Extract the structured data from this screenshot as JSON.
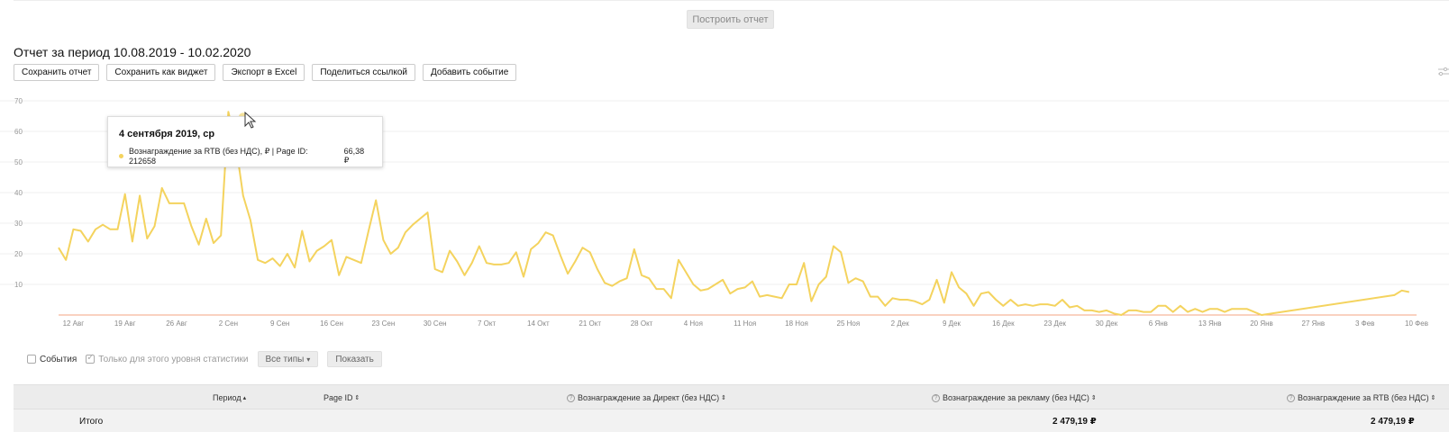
{
  "build_button": "Построить отчет",
  "report_title": "Отчет за период 10.08.2019 - 10.02.2020",
  "toolbar": [
    {
      "label": "Сохранить отчет"
    },
    {
      "label": "Сохранить как виджет"
    },
    {
      "label": "Экспорт в Excel"
    },
    {
      "label": "Поделиться ссылкой"
    },
    {
      "label": "Добавить событие"
    }
  ],
  "tooltip": {
    "date": "4 сентября 2019, ср",
    "series": "Вознаграждение за RTB (без НДС), ₽ | Page ID: 212658",
    "value": "66,38 ₽"
  },
  "filters": {
    "events_label": "События",
    "level_label": "Только для этого уровня статистики",
    "types_label": "Все типы",
    "show_label": "Показать"
  },
  "table": {
    "headers": {
      "period": "Период",
      "page_id": "Page ID",
      "direct": "Вознаграждение за Директ (без НДС)",
      "ads": "Вознаграждение за рекламу (без НДС)",
      "rtb": "Вознаграждение за RTB (без НДС)"
    },
    "total": {
      "label": "Итого",
      "ads": "2 479,19 ₽",
      "rtb": "2 479,19 ₽"
    }
  },
  "colors": {
    "series": "#f4d35e",
    "baseline": "#f4a582"
  },
  "chart_data": {
    "type": "line",
    "ylim": [
      0,
      70
    ],
    "yticks": [
      10,
      20,
      30,
      40,
      50,
      60,
      70
    ],
    "xlim": [
      "2019-08-10",
      "2020-02-10"
    ],
    "xticks": [
      {
        "date": "2019-08-12",
        "label": "12 Авг"
      },
      {
        "date": "2019-08-19",
        "label": "19 Авг"
      },
      {
        "date": "2019-08-26",
        "label": "26 Авг"
      },
      {
        "date": "2019-09-02",
        "label": "2 Сен"
      },
      {
        "date": "2019-09-09",
        "label": "9 Сен"
      },
      {
        "date": "2019-09-16",
        "label": "16 Сен"
      },
      {
        "date": "2019-09-23",
        "label": "23 Сен"
      },
      {
        "date": "2019-09-30",
        "label": "30 Сен"
      },
      {
        "date": "2019-10-07",
        "label": "7 Окт"
      },
      {
        "date": "2019-10-14",
        "label": "14 Окт"
      },
      {
        "date": "2019-10-21",
        "label": "21 Окт"
      },
      {
        "date": "2019-10-28",
        "label": "28 Окт"
      },
      {
        "date": "2019-11-04",
        "label": "4 Ноя"
      },
      {
        "date": "2019-11-11",
        "label": "11 Ноя"
      },
      {
        "date": "2019-11-18",
        "label": "18 Ноя"
      },
      {
        "date": "2019-11-25",
        "label": "25 Ноя"
      },
      {
        "date": "2019-12-02",
        "label": "2 Дек"
      },
      {
        "date": "2019-12-09",
        "label": "9 Дек"
      },
      {
        "date": "2019-12-16",
        "label": "16 Дек"
      },
      {
        "date": "2019-12-23",
        "label": "23 Дек"
      },
      {
        "date": "2019-12-30",
        "label": "30 Дек"
      },
      {
        "date": "2020-01-06",
        "label": "6 Янв"
      },
      {
        "date": "2020-01-13",
        "label": "13 Янв"
      },
      {
        "date": "2020-01-20",
        "label": "20 Янв"
      },
      {
        "date": "2020-01-27",
        "label": "27 Янв"
      },
      {
        "date": "2020-02-03",
        "label": "3 Фев"
      },
      {
        "date": "2020-02-10",
        "label": "10 Фев"
      }
    ],
    "series": [
      {
        "start_date": "2019-08-10",
        "values": [
          22,
          18,
          28,
          27.5,
          24,
          28,
          29.5,
          28,
          28,
          39.5,
          24,
          39,
          25,
          29,
          41.5,
          36.5,
          36.5,
          36.5,
          29,
          23,
          31.5,
          23.5,
          26,
          66.4,
          56,
          39,
          31,
          18,
          17,
          18.5,
          16,
          20,
          15.5,
          27.5,
          17.5,
          21,
          22.5,
          24.5,
          13,
          19,
          18,
          17,
          27.5,
          37.5,
          24.5,
          20,
          22,
          27,
          29.5,
          31.5,
          33.5,
          15,
          14,
          21,
          17.5,
          13,
          17,
          22.5,
          17,
          16.5,
          16.5,
          17,
          20.5,
          12.5,
          21.5,
          23.5,
          27,
          26,
          19.5,
          13.5,
          17.5,
          22,
          20.5,
          15,
          10.5,
          9.5,
          11,
          12,
          21.5,
          13,
          12,
          8.5,
          8.5,
          5.5,
          18,
          14,
          10,
          8,
          8.5,
          10,
          11.5,
          7,
          8.5,
          9,
          11,
          6,
          6.5,
          6,
          5.5,
          10,
          10,
          17,
          4.5,
          10,
          12.5,
          22.5,
          20.5,
          10.5,
          12,
          11,
          6,
          6,
          3,
          5.5,
          5,
          5,
          4.5,
          3.5,
          5,
          11.5,
          4,
          14,
          9,
          7,
          3,
          7,
          7.5,
          5,
          3,
          5,
          3,
          3.5,
          3,
          3.5,
          3.5,
          3,
          5,
          2.5,
          3,
          1.5,
          1.5,
          1,
          1.5,
          0.5,
          0,
          1.5,
          1.5,
          1,
          1,
          3,
          3,
          1,
          3,
          1,
          2,
          1,
          2,
          2,
          1,
          2,
          2,
          2,
          1,
          0
        ],
        "tail": [
          {
            "date": "2020-02-07",
            "value": 6.5
          },
          {
            "date": "2020-02-08",
            "value": 8
          },
          {
            "date": "2020-02-09",
            "value": 7.5
          }
        ]
      }
    ]
  }
}
